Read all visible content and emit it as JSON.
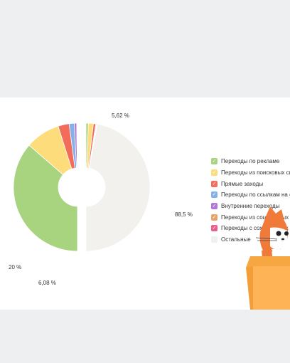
{
  "chart_data": {
    "type": "pie",
    "style": "split-donut",
    "segments": [
      {
        "name": "Переходы по рекламе",
        "color": "#a8d47f",
        "outer": 36.5,
        "inner": 1.2
      },
      {
        "name": "Переходы из поисковых систем",
        "color": "#fddc7c",
        "outer": 8.8,
        "inner": 2.5
      },
      {
        "name": "Прямые заходы",
        "color": "#f26b5b",
        "outer": 2.8,
        "inner": 1.2
      },
      {
        "name": "Переходы по ссылкам на сайтах",
        "color": "#84b1ea",
        "outer": 1.3,
        "inner": 0.4
      },
      {
        "name": "Внутренние переходы",
        "color": "#b07ad4",
        "outer": 0.6,
        "inner": 0.2
      },
      {
        "name": "Переходы из социальных сетей",
        "color": "#e4a56c",
        "outer": 0.1,
        "inner": 0.05
      },
      {
        "name": "Переходы с сохранённых страниц",
        "color": "#e8608a",
        "outer": 0.1,
        "inner": 0.05
      },
      {
        "name": "Остальные",
        "color": "#f3f1ee",
        "outer": 0,
        "inner": 94.4
      }
    ],
    "outer_ring_total_label": "",
    "labels": {
      "inner_ad": "5,62 %",
      "inner_rest": "88,5 %",
      "outer_ad": "20 %",
      "outer_rest": "6,08 %"
    },
    "legend_placement": "right"
  },
  "legend": {
    "items": [
      {
        "label": "Переходы по рекламе",
        "color": "#a8d47f",
        "checked": true
      },
      {
        "label": "Переходы из поисковых систем",
        "color": "#fddc7c",
        "checked": true
      },
      {
        "label": "Прямые заходы",
        "color": "#f26b5b",
        "checked": true
      },
      {
        "label": "Переходы по ссылкам на сайтах",
        "color": "#84b1ea",
        "checked": true
      },
      {
        "label": "Внутренние переходы",
        "color": "#b07ad4",
        "checked": true
      },
      {
        "label": "Переходы из социальных сетей",
        "color": "#e4a56c",
        "checked": true
      },
      {
        "label": "Переходы с сохранённых страниц",
        "color": "#e8608a",
        "checked": true
      },
      {
        "label": "Остальные",
        "color": "#f3f1ee",
        "checked": false
      }
    ]
  },
  "colors": {
    "background": "#eeeff1",
    "card": "#ffffff",
    "box": "#fdb356",
    "cat": "#f07a3a"
  },
  "icons": {
    "mascot": "fox-in-box-mascot",
    "check": "check-icon"
  }
}
